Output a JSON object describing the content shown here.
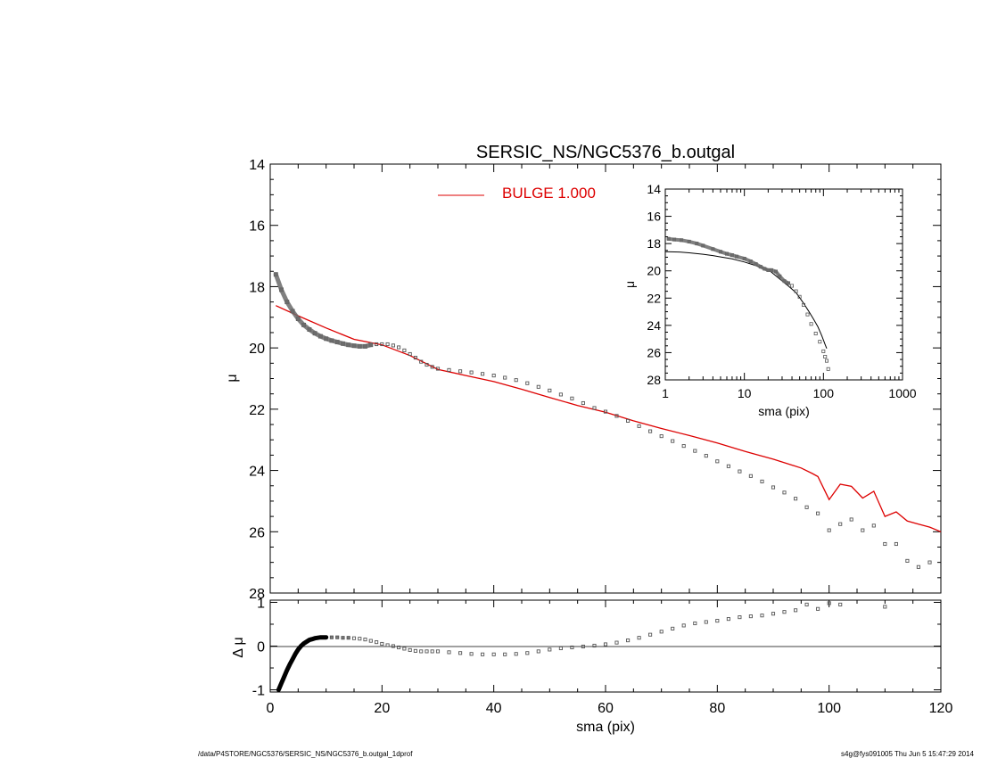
{
  "footer": {
    "left": "/data/P4STORE/NGC5376/SERSIC_NS/NGC5376_b.outgal_1dprof",
    "right": "s4g@fys091005  Thu Jun  5 15:47:29 2014"
  },
  "chart_data": [
    {
      "id": "main",
      "type": "scatter",
      "title": "SERSIC_NS/NGC5376_b.outgal",
      "ylabel": "μ",
      "xlim": [
        0,
        120
      ],
      "ylim": [
        28,
        14
      ],
      "yticks": [
        "14",
        "16",
        "18",
        "20",
        "22",
        "24",
        "26",
        "28"
      ],
      "legend": {
        "placement": "top-center",
        "entries": [
          {
            "label": "BULGE  1.000",
            "color": "#dd0000"
          }
        ]
      },
      "series": [
        {
          "kind": "points",
          "color": "#555555",
          "x": [
            1,
            2,
            3,
            4,
            5,
            6,
            7,
            8,
            9,
            10,
            11,
            12,
            13,
            14,
            15,
            16,
            17,
            18,
            19,
            20,
            21,
            22,
            23,
            24,
            25,
            26,
            27,
            28,
            29,
            30,
            32,
            34,
            36,
            38,
            40,
            42,
            44,
            46,
            48,
            50,
            52,
            54,
            56,
            58,
            60,
            62,
            64,
            66,
            68,
            70,
            72,
            74,
            76,
            78,
            80,
            82,
            84,
            86,
            88,
            90,
            92,
            94,
            96,
            98,
            100,
            102,
            104,
            106,
            108,
            110,
            112,
            114,
            116,
            118
          ],
          "y": [
            17.6,
            18.1,
            18.5,
            18.8,
            19.05,
            19.25,
            19.4,
            19.52,
            19.62,
            19.7,
            19.76,
            19.81,
            19.86,
            19.9,
            19.93,
            19.95,
            19.95,
            19.9,
            19.88,
            19.88,
            19.88,
            19.92,
            19.98,
            20.08,
            20.2,
            20.32,
            20.45,
            20.55,
            20.62,
            20.68,
            20.72,
            20.76,
            20.8,
            20.85,
            20.9,
            20.97,
            21.05,
            21.15,
            21.27,
            21.39,
            21.52,
            21.65,
            21.8,
            21.96,
            22.08,
            22.22,
            22.38,
            22.55,
            22.72,
            22.88,
            23.04,
            23.2,
            23.36,
            23.52,
            23.7,
            23.86,
            24.03,
            24.18,
            24.36,
            24.55,
            24.72,
            24.92,
            25.2,
            25.4,
            25.95,
            25.75,
            25.6,
            25.95,
            25.8,
            26.4,
            26.4,
            26.95,
            27.15,
            27.0
          ]
        },
        {
          "kind": "line",
          "name": "BULGE  1.000",
          "color": "#dd0000",
          "x": [
            1,
            5,
            10,
            15,
            20,
            25,
            30,
            35,
            40,
            45,
            50,
            55,
            60,
            65,
            70,
            75,
            80,
            85,
            90,
            95,
            97,
            98,
            100,
            102,
            104,
            106,
            108,
            110,
            112,
            114,
            116,
            118,
            120
          ],
          "y": [
            18.62,
            18.95,
            19.35,
            19.72,
            19.9,
            20.25,
            20.7,
            20.9,
            21.1,
            21.35,
            21.62,
            21.88,
            22.1,
            22.38,
            22.63,
            22.86,
            23.1,
            23.38,
            23.63,
            23.92,
            24.1,
            24.2,
            24.95,
            24.45,
            24.52,
            24.9,
            24.68,
            25.5,
            25.35,
            25.65,
            25.75,
            25.85,
            26.0
          ]
        }
      ]
    },
    {
      "id": "residual",
      "type": "scatter",
      "xlabel": "sma (pix)",
      "ylabel": "Δ μ",
      "xlim": [
        0,
        120
      ],
      "ylim": [
        -1,
        1
      ],
      "xticks": [
        "0",
        "20",
        "40",
        "60",
        "80",
        "100",
        "120"
      ],
      "yticks": [
        "-1",
        "0",
        "1"
      ],
      "series": [
        {
          "kind": "thick-line",
          "color": "#000000",
          "x": [
            1.5,
            2,
            2.5,
            3,
            3.5,
            4,
            4.5,
            5,
            5.5,
            6,
            6.5,
            7,
            7.5,
            8,
            8.5,
            9,
            9.5,
            10
          ],
          "y": [
            -1.0,
            -0.85,
            -0.7,
            -0.55,
            -0.42,
            -0.3,
            -0.18,
            -0.08,
            0.0,
            0.06,
            0.1,
            0.14,
            0.16,
            0.18,
            0.19,
            0.2,
            0.2,
            0.2
          ]
        },
        {
          "kind": "points",
          "color": "#555555",
          "x": [
            11,
            12,
            13,
            14,
            15,
            16,
            17,
            18,
            19,
            20,
            21,
            22,
            23,
            24,
            25,
            26,
            27,
            28,
            29,
            30,
            32,
            34,
            36,
            38,
            40,
            42,
            44,
            46,
            48,
            50,
            52,
            54,
            56,
            58,
            60,
            62,
            64,
            66,
            68,
            70,
            72,
            74,
            76,
            78,
            80,
            82,
            84,
            86,
            88,
            90,
            92,
            94,
            96,
            98,
            100,
            102,
            110
          ],
          "y": [
            0.2,
            0.2,
            0.19,
            0.19,
            0.18,
            0.17,
            0.15,
            0.12,
            0.09,
            0.05,
            0.02,
            0.0,
            -0.03,
            -0.06,
            -0.09,
            -0.11,
            -0.12,
            -0.12,
            -0.12,
            -0.12,
            -0.14,
            -0.16,
            -0.18,
            -0.19,
            -0.19,
            -0.19,
            -0.18,
            -0.16,
            -0.12,
            -0.08,
            -0.05,
            -0.03,
            -0.01,
            0.01,
            0.04,
            0.08,
            0.13,
            0.19,
            0.26,
            0.33,
            0.4,
            0.47,
            0.52,
            0.55,
            0.58,
            0.62,
            0.66,
            0.68,
            0.7,
            0.74,
            0.78,
            0.82,
            0.95,
            0.85,
            0.98,
            0.95,
            0.9
          ]
        }
      ]
    },
    {
      "id": "inset",
      "type": "scatter",
      "xlabel": "sma (pix)",
      "ylabel": "μ",
      "xscale": "log",
      "xlim": [
        1,
        1000
      ],
      "ylim": [
        28,
        14
      ],
      "xticks": [
        "1",
        "10",
        "100",
        "1000"
      ],
      "yticks": [
        "14",
        "16",
        "18",
        "20",
        "22",
        "24",
        "26",
        "28"
      ],
      "series": [
        {
          "kind": "points",
          "color": "#555555",
          "x": [
            1.1,
            1.3,
            1.6,
            2,
            2.5,
            3,
            4,
            5,
            6,
            7,
            8,
            10,
            12,
            14,
            16,
            18,
            20,
            22,
            25,
            28,
            32,
            36,
            40,
            45,
            50,
            56,
            63,
            70,
            80,
            90,
            100,
            105,
            110,
            115
          ],
          "y": [
            17.65,
            17.7,
            17.75,
            17.85,
            18.0,
            18.15,
            18.4,
            18.6,
            18.75,
            18.85,
            18.95,
            19.1,
            19.3,
            19.5,
            19.7,
            19.85,
            19.95,
            19.95,
            20.05,
            20.4,
            20.75,
            20.9,
            21.1,
            21.5,
            21.9,
            22.5,
            23.2,
            23.9,
            24.6,
            25.2,
            25.9,
            26.3,
            26.6,
            27.2
          ]
        },
        {
          "kind": "line",
          "color": "#000000",
          "x": [
            1,
            1.5,
            2,
            3,
            4,
            5,
            7,
            10,
            14,
            20,
            28,
            35,
            45,
            55,
            65,
            75,
            85,
            95,
            105,
            110
          ],
          "y": [
            18.6,
            18.62,
            18.68,
            18.78,
            18.88,
            18.98,
            19.12,
            19.35,
            19.62,
            19.9,
            20.6,
            21.05,
            21.6,
            22.3,
            22.95,
            23.55,
            24.1,
            24.75,
            25.4,
            25.7
          ]
        }
      ]
    }
  ]
}
